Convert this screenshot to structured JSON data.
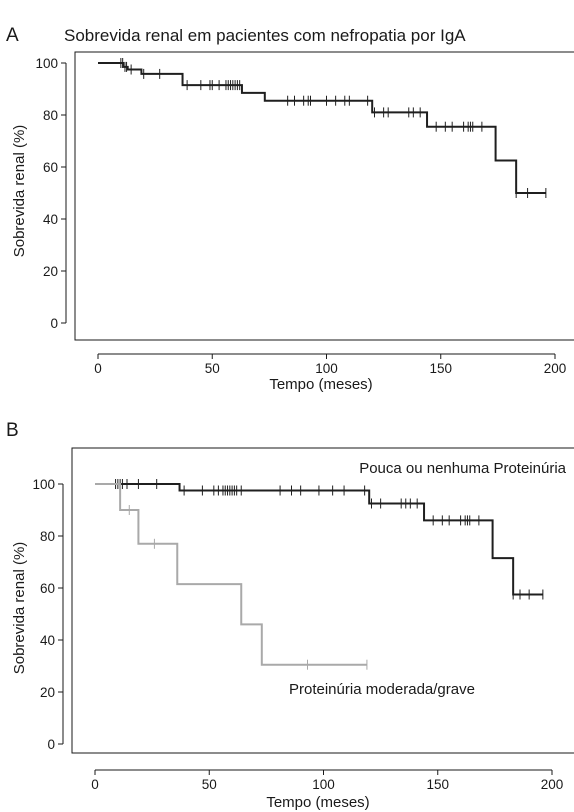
{
  "colors": {
    "dark": "#1f1f1f",
    "light": "#a9a9a9",
    "axis": "#1a1a1a"
  },
  "chart_data": [
    {
      "panel": "A",
      "type": "line",
      "title": "Sobrevida renal em pacientes com nefropatia por IgA",
      "xlabel": "Tempo (meses)",
      "ylabel": "Sobrevida renal (%)",
      "xlim": [
        -10,
        210
      ],
      "ylim": [
        -5,
        105
      ],
      "xticks": [
        0,
        50,
        100,
        150,
        200
      ],
      "yticks": [
        0,
        20,
        40,
        60,
        80,
        100
      ],
      "grid": false,
      "series": [
        {
          "color": "dark",
          "steps": [
            [
              0,
              100
            ],
            [
              11,
              98.5
            ],
            [
              13,
              97.5
            ],
            [
              19,
              95.8
            ],
            [
              37,
              91.5
            ],
            [
              63,
              88.5
            ],
            [
              73,
              85.5
            ],
            [
              120,
              81
            ],
            [
              144,
              75.5
            ],
            [
              174,
              62.5
            ],
            [
              183,
              50
            ],
            [
              196,
              50
            ]
          ],
          "censored": [
            10,
            10.8,
            11.8,
            12.5,
            14.5,
            20,
            27,
            39,
            45,
            49,
            50,
            53,
            56,
            57,
            58,
            59,
            60,
            61,
            62,
            83,
            86,
            90,
            92,
            93,
            100,
            104,
            108,
            110,
            118,
            121,
            125,
            127,
            136,
            138,
            141,
            148,
            152,
            155,
            160,
            162,
            163,
            164,
            168,
            183,
            188,
            196
          ]
        }
      ]
    },
    {
      "panel": "B",
      "type": "line",
      "title": "",
      "xlabel": "Tempo (meses)",
      "ylabel": "Sobrevida renal (%)",
      "xlim": [
        -10,
        210
      ],
      "ylim": [
        -5,
        115
      ],
      "xticks": [
        0,
        50,
        100,
        150,
        200
      ],
      "yticks": [
        0,
        20,
        40,
        60,
        80,
        100
      ],
      "grid": false,
      "series": [
        {
          "name": "Pouca ou nenhuma Proteinúria",
          "color": "dark",
          "steps": [
            [
              0,
              100
            ],
            [
              37,
              97.5
            ],
            [
              120,
              92.5
            ],
            [
              144,
              86
            ],
            [
              174,
              71.5
            ],
            [
              183,
              57.5
            ],
            [
              196,
              57.5
            ]
          ],
          "censored": [
            9,
            10,
            11,
            12,
            14,
            19,
            27,
            39,
            47,
            52,
            54,
            56,
            57,
            58,
            59,
            60,
            61,
            62,
            64,
            81,
            86,
            90,
            98,
            104,
            109,
            118,
            121,
            125,
            134,
            136,
            138,
            141,
            148,
            152,
            155,
            160,
            162,
            163,
            164,
            168,
            183,
            186,
            190,
            196
          ]
        },
        {
          "name": "Proteinúria moderada/grave",
          "color": "light",
          "steps": [
            [
              0,
              100
            ],
            [
              11,
              90
            ],
            [
              19,
              77
            ],
            [
              36,
              61.5
            ],
            [
              64,
              46
            ],
            [
              73,
              30.5
            ],
            [
              119,
              30.5
            ]
          ],
          "censored": [
            15,
            26,
            93,
            119
          ]
        }
      ],
      "annotations": [
        {
          "text": "Pouca ou nenhuma Proteinúria"
        },
        {
          "text": "Proteinúria moderada/grave"
        }
      ]
    }
  ]
}
